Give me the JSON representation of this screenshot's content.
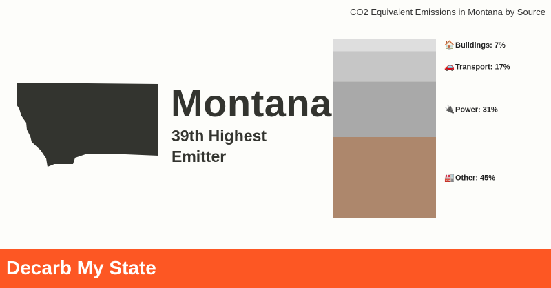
{
  "state": {
    "name": "Montana",
    "rank_line1": "39th Highest",
    "rank_line2": "Emitter",
    "map_icon": "montana-outline",
    "map_color": "#33342f"
  },
  "chart_data": {
    "type": "bar",
    "stacked": true,
    "title": "CO2 Equivalent Emissions in Montana by Source",
    "categories": [
      "Montana"
    ],
    "series": [
      {
        "name": "Other",
        "icon": "factory-emoji",
        "value": 45,
        "label": "Other: 45%",
        "color": "#ad876c"
      },
      {
        "name": "Power",
        "icon": "plug-emoji",
        "value": 31,
        "label": "Power: 31%",
        "color": "#a9a9a9"
      },
      {
        "name": "Transport",
        "icon": "car-emoji",
        "value": 17,
        "label": "Transport: 17%",
        "color": "#c6c6c6"
      },
      {
        "name": "Buildings",
        "icon": "house-emoji",
        "value": 7,
        "label": "Buildings: 7%",
        "color": "#dedede"
      }
    ],
    "ylim": [
      0,
      100
    ],
    "grid": false,
    "legend": "none"
  },
  "footer": {
    "brand": "Decarb My State",
    "color": "#fd5723"
  }
}
